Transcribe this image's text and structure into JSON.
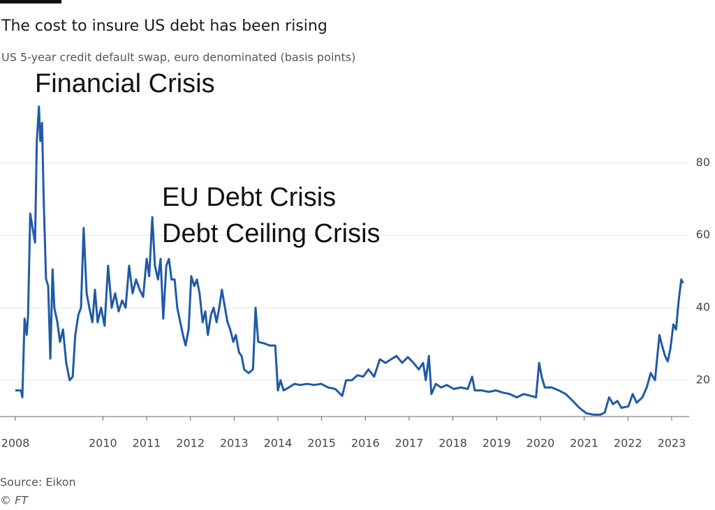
{
  "chart_data": {
    "type": "line",
    "title": "The cost to insure US debt has been rising",
    "subtitle": "US 5-year credit default swap, euro denominated (basis points)",
    "annotations": [
      "Financial Crisis",
      "EU Debt Crisis",
      "Debt Ceiling Crisis"
    ],
    "source": "Source: Eikon",
    "credit": "© FT",
    "x": [
      2008.0,
      2008.13,
      2008.16,
      2008.21,
      2008.26,
      2008.29,
      2008.34,
      2008.38,
      2008.45,
      2008.49,
      2008.54,
      2008.57,
      2008.61,
      2008.65,
      2008.7,
      2008.75,
      2008.8,
      2008.85,
      2008.89,
      2008.96,
      2009.02,
      2009.09,
      2009.16,
      2009.24,
      2009.31,
      2009.37,
      2009.44,
      2009.5,
      2009.56,
      2009.63,
      2009.69,
      2009.76,
      2009.82,
      2009.88,
      2009.96,
      2010.04,
      2010.12,
      2010.2,
      2010.28,
      2010.36,
      2010.44,
      2010.52,
      2010.6,
      2010.68,
      2010.76,
      2010.84,
      2010.92,
      2011.0,
      2011.06,
      2011.13,
      2011.19,
      2011.26,
      2011.32,
      2011.38,
      2011.45,
      2011.51,
      2011.57,
      2011.64,
      2011.7,
      2011.77,
      2011.83,
      2011.89,
      2011.96,
      2012.02,
      2012.09,
      2012.15,
      2012.21,
      2012.28,
      2012.34,
      2012.4,
      2012.47,
      2012.53,
      2012.6,
      2012.66,
      2012.72,
      2012.79,
      2012.85,
      2012.91,
      2012.98,
      2013.04,
      2013.11,
      2013.17,
      2013.23,
      2013.33,
      2013.43,
      2013.49,
      2013.55,
      2013.68,
      2013.81,
      2013.94,
      2014.0,
      2014.06,
      2014.13,
      2014.25,
      2014.38,
      2014.51,
      2014.67,
      2014.83,
      2014.99,
      2015.15,
      2015.31,
      2015.47,
      2015.56,
      2015.69,
      2015.82,
      2015.95,
      2016.07,
      2016.2,
      2016.33,
      2016.46,
      2016.59,
      2016.71,
      2016.84,
      2016.97,
      2017.1,
      2017.22,
      2017.32,
      2017.38,
      2017.45,
      2017.51,
      2017.61,
      2017.73,
      2017.86,
      2018.02,
      2018.18,
      2018.34,
      2018.44,
      2018.5,
      2018.66,
      2018.82,
      2018.98,
      2019.14,
      2019.3,
      2019.46,
      2019.62,
      2019.78,
      2019.9,
      2019.97,
      2020.03,
      2020.1,
      2020.26,
      2020.42,
      2020.58,
      2020.74,
      2020.89,
      2021.05,
      2021.21,
      2021.37,
      2021.47,
      2021.57,
      2021.66,
      2021.76,
      2021.85,
      2022.01,
      2022.11,
      2022.2,
      2022.33,
      2022.43,
      2022.52,
      2022.62,
      2022.72,
      2022.78,
      2022.85,
      2022.91,
      2022.97,
      2023.04,
      2023.1,
      2023.16,
      2023.22,
      2023.26
    ],
    "series": [
      {
        "name": "US 5-year CDS",
        "color": "#1f5aa6",
        "values": [
          17.2,
          17.2,
          15.3,
          37,
          32.5,
          38,
          66,
          63,
          58,
          86,
          95.5,
          86,
          91,
          69,
          48,
          46,
          26,
          50.6,
          40,
          36,
          30.6,
          34,
          25,
          20,
          21,
          32.5,
          38,
          40,
          62,
          44,
          40,
          36,
          45,
          36,
          40,
          35,
          51.6,
          40,
          44,
          39,
          42,
          40,
          51.6,
          44,
          47.8,
          45,
          43,
          53.5,
          48.7,
          65,
          51.6,
          47.8,
          53.5,
          37,
          51.6,
          53.5,
          47.8,
          47.8,
          40,
          36,
          32.5,
          29.6,
          34,
          48.7,
          46,
          47.8,
          44,
          36,
          39,
          32.5,
          38,
          40,
          36,
          40,
          45,
          40,
          36,
          34,
          30.6,
          32.5,
          27.7,
          26.7,
          23,
          22,
          23,
          40,
          30.6,
          30.2,
          29.6,
          29.6,
          17.2,
          20,
          17.2,
          18,
          19,
          18.7,
          19,
          18.7,
          19,
          18,
          17.6,
          15.7,
          20,
          20,
          21.4,
          21,
          23,
          21,
          25.8,
          24.8,
          25.8,
          26.7,
          24.8,
          26.4,
          24.8,
          23,
          24.8,
          20,
          26.7,
          16.2,
          19,
          18,
          18.7,
          17.6,
          18,
          17.6,
          21,
          17.2,
          17.2,
          16.8,
          17.2,
          16.6,
          16.2,
          15.3,
          16.2,
          15.7,
          15.3,
          24.8,
          21,
          18,
          18,
          17.2,
          16.2,
          14.3,
          12.4,
          10.9,
          10.5,
          10.5,
          11.1,
          15.3,
          13.4,
          14.3,
          12.4,
          12.8,
          16.2,
          13.8,
          15.3,
          18,
          22,
          20,
          32.5,
          29.6,
          26.7,
          25.2,
          28.7,
          35.4,
          34,
          42,
          47.8,
          46.8
        ]
      }
    ],
    "xlim": [
      2008,
      2023.4
    ],
    "xticks": [
      2008,
      2010,
      2011,
      2012,
      2013,
      2014,
      2015,
      2016,
      2017,
      2018,
      2019,
      2020,
      2021,
      2022,
      2023
    ],
    "ylim": [
      10,
      97
    ],
    "yticks": [
      20,
      40,
      60,
      80
    ],
    "grid": true
  }
}
